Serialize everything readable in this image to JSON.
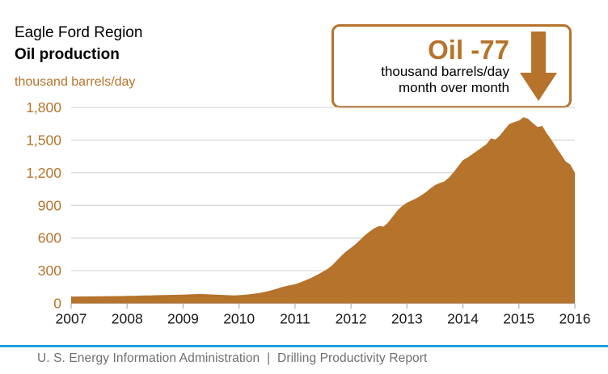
{
  "header": {
    "region": "Eagle Ford Region",
    "metric": "Oil production",
    "units": "thousand barrels/day"
  },
  "callout": {
    "headline": "Oil -77",
    "unit_line": "thousand barrels/day",
    "period_line": "month over month",
    "arrow_icon": "down-arrow",
    "accent_color": "#b5732b"
  },
  "footer": {
    "attribution": "U. S. Energy Information Administration  |  Drilling Productivity Report"
  },
  "colors": {
    "accent_brown": "#b5732b",
    "gridline": "#d9d9d9",
    "axis_tick": "#b3b3b3",
    "x_label": "#1a1a1a",
    "footer_rule_blue": "#1ca0dd",
    "footer_text_gray": "#6f6f6f"
  },
  "chart_data": {
    "type": "area",
    "title": "Eagle Ford Region Oil production",
    "ylabel": "thousand barrels/day",
    "xlabel": "",
    "ylim": [
      0,
      1800
    ],
    "yticks": [
      0,
      300,
      600,
      900,
      1200,
      1500,
      1800
    ],
    "ytick_labels": [
      "0",
      "300",
      "600",
      "900",
      "1,200",
      "1,500",
      "1,800"
    ],
    "x_years": [
      "2007",
      "2008",
      "2009",
      "2010",
      "2011",
      "2012",
      "2013",
      "2014",
      "2015",
      "2016"
    ],
    "x_monthly_range": "Jan 2007 to Jan 2016",
    "grid": "horizontal",
    "legend": "none",
    "area_color": "#b5732b",
    "peak_value": 1710,
    "last_value": 1200,
    "month_over_month_change": -77,
    "series": [
      {
        "name": "Oil production (thousand barrels/day)",
        "values": [
          62,
          62,
          63,
          63,
          64,
          64,
          65,
          65,
          66,
          66,
          67,
          67,
          68,
          69,
          70,
          71,
          72,
          73,
          74,
          75,
          76,
          77,
          78,
          79,
          80,
          82,
          84,
          85,
          85,
          84,
          82,
          80,
          78,
          76,
          74,
          73,
          75,
          78,
          82,
          87,
          93,
          100,
          110,
          121,
          133,
          146,
          158,
          167,
          175,
          190,
          207,
          225,
          245,
          267,
          291,
          317,
          350,
          395,
          440,
          478,
          510,
          545,
          585,
          625,
          660,
          690,
          710,
          705,
          745,
          800,
          855,
          895,
          925,
          945,
          965,
          990,
          1020,
          1055,
          1085,
          1105,
          1120,
          1155,
          1205,
          1260,
          1315,
          1340,
          1370,
          1400,
          1430,
          1460,
          1515,
          1505,
          1545,
          1600,
          1650,
          1665,
          1680,
          1710,
          1695,
          1655,
          1620,
          1630,
          1560,
          1500,
          1435,
          1370,
          1305,
          1277,
          1200
        ]
      }
    ]
  }
}
